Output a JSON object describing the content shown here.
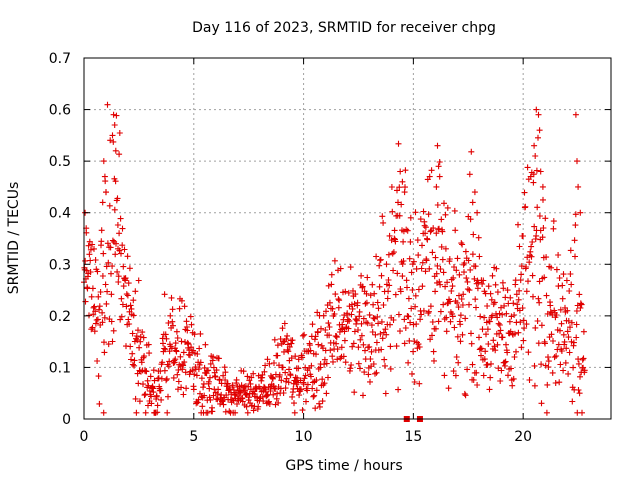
{
  "chart_data": {
    "type": "scatter",
    "title": "Day 116 of 2023, SRMTID for receiver chpg",
    "xlabel": "GPS time / hours",
    "ylabel": "SRMTID / TECUs",
    "xlim": [
      0,
      24
    ],
    "ylim": [
      0,
      0.7
    ],
    "xticks": [
      0,
      5,
      10,
      15,
      20
    ],
    "xtick_labels": [
      "0",
      "5",
      "10",
      "15",
      "20"
    ],
    "yticks": [
      0,
      0.1,
      0.2,
      0.3,
      0.4,
      0.5,
      0.6,
      0.7
    ],
    "ytick_labels": [
      "0",
      "0.1",
      "0.2",
      "0.3",
      "0.4",
      "0.5",
      "0.6",
      "0.7"
    ],
    "grid": true,
    "marker": "plus",
    "color": "#e00000",
    "trend": {
      "x": [
        0,
        0.3,
        0.7,
        1.0,
        1.4,
        1.7,
        2.0,
        2.3,
        2.6,
        3.0,
        3.3,
        3.6,
        4.0,
        4.4,
        4.8,
        5.2,
        5.6,
        6.0,
        6.5,
        7.0,
        7.5,
        8.0,
        8.5,
        9.0,
        9.3,
        9.6,
        10.0,
        10.4,
        10.8,
        11.2,
        11.6,
        12.0,
        12.5,
        13.0,
        13.5,
        14.0,
        14.4,
        14.8,
        15.2,
        15.6,
        16.0,
        16.4,
        16.8,
        17.2,
        17.6,
        18.0,
        18.5,
        19.0,
        19.5,
        20.0,
        20.4,
        20.8,
        21.2,
        21.6,
        22.0,
        22.4,
        22.8
      ],
      "y": [
        0.3,
        0.28,
        0.2,
        0.25,
        0.4,
        0.3,
        0.2,
        0.15,
        0.12,
        0.05,
        0.04,
        0.12,
        0.15,
        0.12,
        0.14,
        0.1,
        0.06,
        0.07,
        0.05,
        0.05,
        0.05,
        0.06,
        0.07,
        0.1,
        0.12,
        0.06,
        0.1,
        0.1,
        0.12,
        0.15,
        0.2,
        0.18,
        0.2,
        0.16,
        0.2,
        0.28,
        0.32,
        0.28,
        0.25,
        0.32,
        0.3,
        0.26,
        0.2,
        0.22,
        0.3,
        0.2,
        0.18,
        0.16,
        0.18,
        0.26,
        0.3,
        0.32,
        0.26,
        0.2,
        0.16,
        0.26,
        0.1
      ],
      "spread": [
        0.05,
        0.05,
        0.08,
        0.15,
        0.12,
        0.08,
        0.06,
        0.06,
        0.05,
        0.03,
        0.03,
        0.05,
        0.05,
        0.05,
        0.05,
        0.04,
        0.03,
        0.03,
        0.02,
        0.02,
        0.02,
        0.02,
        0.03,
        0.04,
        0.04,
        0.03,
        0.04,
        0.05,
        0.05,
        0.06,
        0.06,
        0.06,
        0.06,
        0.06,
        0.07,
        0.1,
        0.12,
        0.12,
        0.08,
        0.1,
        0.1,
        0.08,
        0.07,
        0.08,
        0.1,
        0.06,
        0.06,
        0.06,
        0.06,
        0.08,
        0.15,
        0.14,
        0.1,
        0.06,
        0.05,
        0.15,
        0.03
      ]
    },
    "spikes": [
      {
        "x": 1.35,
        "y": 0.59
      },
      {
        "x": 1.4,
        "y": 0.57
      },
      {
        "x": 1.3,
        "y": 0.55
      },
      {
        "x": 1.45,
        "y": 0.52
      },
      {
        "x": 0.9,
        "y": 0.5
      },
      {
        "x": 0.95,
        "y": 0.47
      },
      {
        "x": 1.0,
        "y": 0.44
      },
      {
        "x": 0.85,
        "y": 0.42
      },
      {
        "x": 1.6,
        "y": 0.36
      },
      {
        "x": 1.55,
        "y": 0.33
      },
      {
        "x": 0.05,
        "y": 0.4
      },
      {
        "x": 0.1,
        "y": 0.37
      },
      {
        "x": 14.4,
        "y": 0.48
      },
      {
        "x": 14.5,
        "y": 0.46
      },
      {
        "x": 14.6,
        "y": 0.44
      },
      {
        "x": 14.3,
        "y": 0.42
      },
      {
        "x": 16.1,
        "y": 0.53
      },
      {
        "x": 16.15,
        "y": 0.49
      },
      {
        "x": 16.2,
        "y": 0.47
      },
      {
        "x": 16.05,
        "y": 0.45
      },
      {
        "x": 17.8,
        "y": 0.44
      },
      {
        "x": 17.7,
        "y": 0.42
      },
      {
        "x": 17.9,
        "y": 0.4
      },
      {
        "x": 20.6,
        "y": 0.6
      },
      {
        "x": 20.7,
        "y": 0.59
      },
      {
        "x": 20.75,
        "y": 0.56
      },
      {
        "x": 20.5,
        "y": 0.53
      },
      {
        "x": 20.55,
        "y": 0.51
      },
      {
        "x": 20.8,
        "y": 0.48
      },
      {
        "x": 20.9,
        "y": 0.45
      },
      {
        "x": 22.4,
        "y": 0.59
      },
      {
        "x": 22.45,
        "y": 0.5
      },
      {
        "x": 22.5,
        "y": 0.45
      },
      {
        "x": 22.6,
        "y": 0.4
      }
    ],
    "zero_points": [
      {
        "x": 14.7,
        "y": 0.0
      },
      {
        "x": 15.3,
        "y": 0.0
      }
    ]
  }
}
